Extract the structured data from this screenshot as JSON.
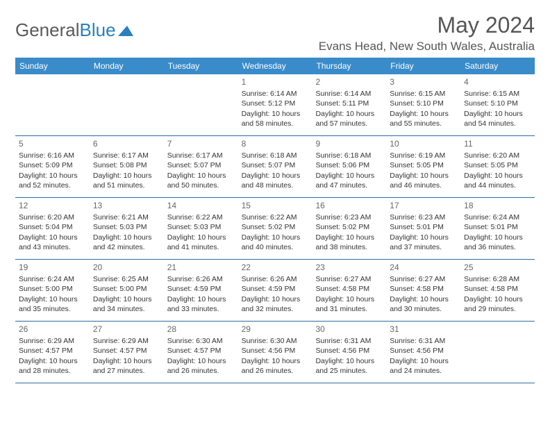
{
  "brand": {
    "part1": "General",
    "part2": "Blue"
  },
  "title": "May 2024",
  "location": "Evans Head, New South Wales, Australia",
  "colors": {
    "header_bg": "#3a8bc9",
    "header_text": "#ffffff",
    "row_border": "#2a6ca3",
    "text": "#333333",
    "title_color": "#555555",
    "brand_gray": "#5a5a5a",
    "brand_blue": "#2a7fbf",
    "background": "#ffffff"
  },
  "typography": {
    "month_title_fontsize": 32,
    "location_fontsize": 17,
    "weekday_fontsize": 12,
    "daynum_fontsize": 12,
    "body_fontsize": 10.5
  },
  "weekdays": [
    "Sunday",
    "Monday",
    "Tuesday",
    "Wednesday",
    "Thursday",
    "Friday",
    "Saturday"
  ],
  "first_weekday_index": 3,
  "days": [
    {
      "n": 1,
      "sunrise": "6:14 AM",
      "sunset": "5:12 PM",
      "daylight": "10 hours and 58 minutes."
    },
    {
      "n": 2,
      "sunrise": "6:14 AM",
      "sunset": "5:11 PM",
      "daylight": "10 hours and 57 minutes."
    },
    {
      "n": 3,
      "sunrise": "6:15 AM",
      "sunset": "5:10 PM",
      "daylight": "10 hours and 55 minutes."
    },
    {
      "n": 4,
      "sunrise": "6:15 AM",
      "sunset": "5:10 PM",
      "daylight": "10 hours and 54 minutes."
    },
    {
      "n": 5,
      "sunrise": "6:16 AM",
      "sunset": "5:09 PM",
      "daylight": "10 hours and 52 minutes."
    },
    {
      "n": 6,
      "sunrise": "6:17 AM",
      "sunset": "5:08 PM",
      "daylight": "10 hours and 51 minutes."
    },
    {
      "n": 7,
      "sunrise": "6:17 AM",
      "sunset": "5:07 PM",
      "daylight": "10 hours and 50 minutes."
    },
    {
      "n": 8,
      "sunrise": "6:18 AM",
      "sunset": "5:07 PM",
      "daylight": "10 hours and 48 minutes."
    },
    {
      "n": 9,
      "sunrise": "6:18 AM",
      "sunset": "5:06 PM",
      "daylight": "10 hours and 47 minutes."
    },
    {
      "n": 10,
      "sunrise": "6:19 AM",
      "sunset": "5:05 PM",
      "daylight": "10 hours and 46 minutes."
    },
    {
      "n": 11,
      "sunrise": "6:20 AM",
      "sunset": "5:05 PM",
      "daylight": "10 hours and 44 minutes."
    },
    {
      "n": 12,
      "sunrise": "6:20 AM",
      "sunset": "5:04 PM",
      "daylight": "10 hours and 43 minutes."
    },
    {
      "n": 13,
      "sunrise": "6:21 AM",
      "sunset": "5:03 PM",
      "daylight": "10 hours and 42 minutes."
    },
    {
      "n": 14,
      "sunrise": "6:22 AM",
      "sunset": "5:03 PM",
      "daylight": "10 hours and 41 minutes."
    },
    {
      "n": 15,
      "sunrise": "6:22 AM",
      "sunset": "5:02 PM",
      "daylight": "10 hours and 40 minutes."
    },
    {
      "n": 16,
      "sunrise": "6:23 AM",
      "sunset": "5:02 PM",
      "daylight": "10 hours and 38 minutes."
    },
    {
      "n": 17,
      "sunrise": "6:23 AM",
      "sunset": "5:01 PM",
      "daylight": "10 hours and 37 minutes."
    },
    {
      "n": 18,
      "sunrise": "6:24 AM",
      "sunset": "5:01 PM",
      "daylight": "10 hours and 36 minutes."
    },
    {
      "n": 19,
      "sunrise": "6:24 AM",
      "sunset": "5:00 PM",
      "daylight": "10 hours and 35 minutes."
    },
    {
      "n": 20,
      "sunrise": "6:25 AM",
      "sunset": "5:00 PM",
      "daylight": "10 hours and 34 minutes."
    },
    {
      "n": 21,
      "sunrise": "6:26 AM",
      "sunset": "4:59 PM",
      "daylight": "10 hours and 33 minutes."
    },
    {
      "n": 22,
      "sunrise": "6:26 AM",
      "sunset": "4:59 PM",
      "daylight": "10 hours and 32 minutes."
    },
    {
      "n": 23,
      "sunrise": "6:27 AM",
      "sunset": "4:58 PM",
      "daylight": "10 hours and 31 minutes."
    },
    {
      "n": 24,
      "sunrise": "6:27 AM",
      "sunset": "4:58 PM",
      "daylight": "10 hours and 30 minutes."
    },
    {
      "n": 25,
      "sunrise": "6:28 AM",
      "sunset": "4:58 PM",
      "daylight": "10 hours and 29 minutes."
    },
    {
      "n": 26,
      "sunrise": "6:29 AM",
      "sunset": "4:57 PM",
      "daylight": "10 hours and 28 minutes."
    },
    {
      "n": 27,
      "sunrise": "6:29 AM",
      "sunset": "4:57 PM",
      "daylight": "10 hours and 27 minutes."
    },
    {
      "n": 28,
      "sunrise": "6:30 AM",
      "sunset": "4:57 PM",
      "daylight": "10 hours and 26 minutes."
    },
    {
      "n": 29,
      "sunrise": "6:30 AM",
      "sunset": "4:56 PM",
      "daylight": "10 hours and 26 minutes."
    },
    {
      "n": 30,
      "sunrise": "6:31 AM",
      "sunset": "4:56 PM",
      "daylight": "10 hours and 25 minutes."
    },
    {
      "n": 31,
      "sunrise": "6:31 AM",
      "sunset": "4:56 PM",
      "daylight": "10 hours and 24 minutes."
    }
  ],
  "labels": {
    "sunrise_prefix": "Sunrise: ",
    "sunset_prefix": "Sunset: ",
    "daylight_prefix": "Daylight: "
  }
}
